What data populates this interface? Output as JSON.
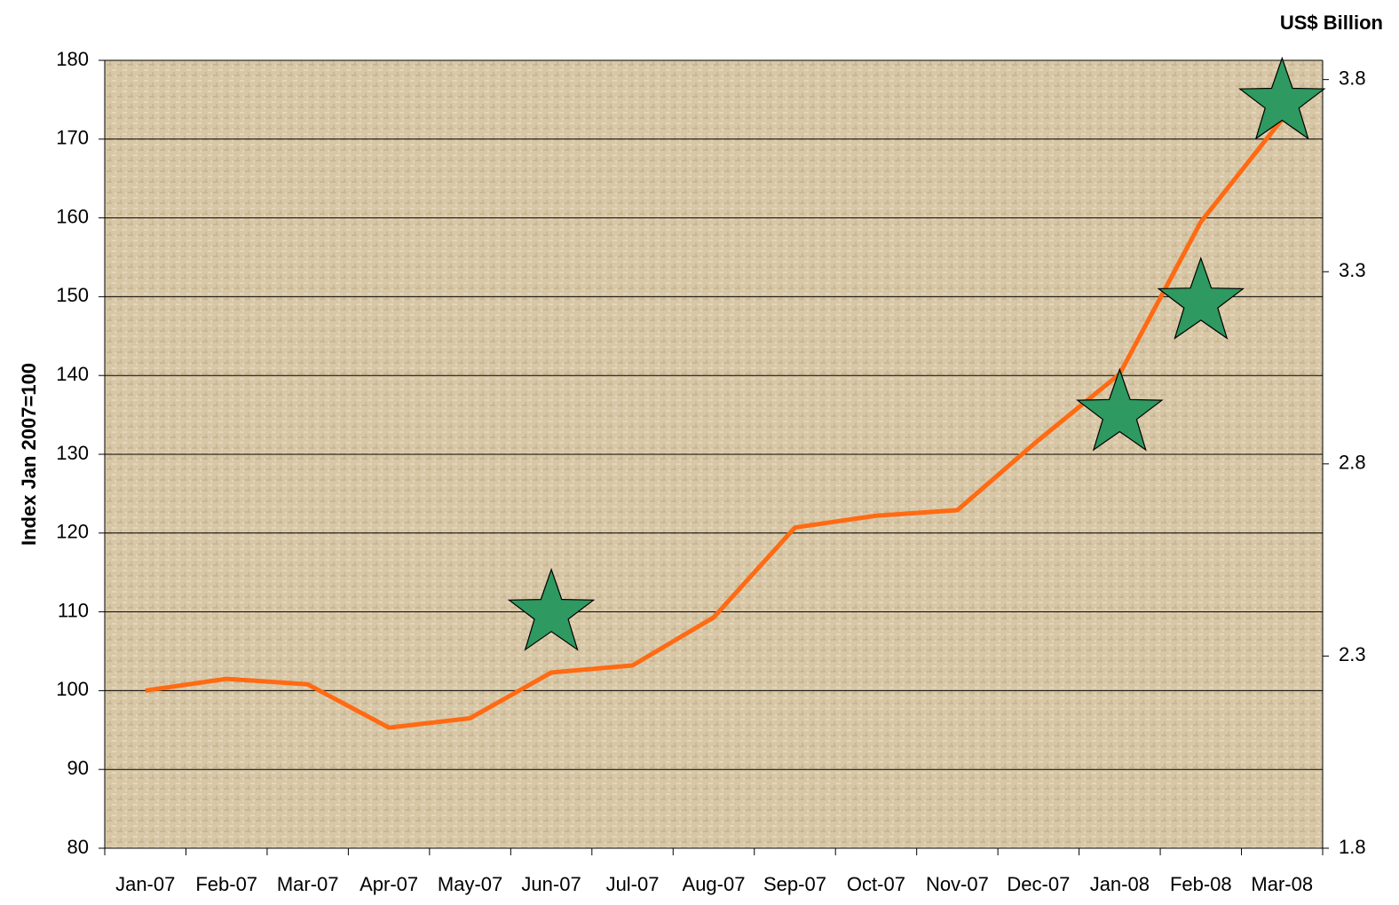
{
  "chart_data": {
    "type": "line",
    "y_label": "Index Jan 2007=100",
    "y2_label": "US$ Billion",
    "categories": [
      "Jan-07",
      "Feb-07",
      "Mar-07",
      "Apr-07",
      "May-07",
      "Jun-07",
      "Jul-07",
      "Aug-07",
      "Sep-07",
      "Oct-07",
      "Nov-07",
      "Dec-07",
      "Jan-08",
      "Feb-08",
      "Mar-08"
    ],
    "series": [
      {
        "color": "#ff6a13",
        "values": [
          100,
          101.5,
          100.8,
          95.3,
          96.5,
          102.3,
          103.2,
          109.3,
          120.7,
          122.2,
          122.9,
          131.8,
          140.2,
          159.5,
          172.5
        ]
      },
      {
        "color": "#2e9960",
        "marker": "star",
        "axis": "y2",
        "values": [
          null,
          null,
          null,
          null,
          null,
          2.41,
          null,
          null,
          null,
          null,
          null,
          null,
          2.93,
          3.22,
          3.74
        ]
      }
    ],
    "ylim": [
      80,
      180
    ],
    "yticks": [
      80,
      90,
      100,
      110,
      120,
      130,
      140,
      150,
      160,
      170,
      180
    ],
    "y2lim": [
      1.8,
      3.85
    ],
    "y2ticks": [
      1.8,
      2.3,
      2.8,
      3.3,
      3.8
    ],
    "grid": true
  }
}
